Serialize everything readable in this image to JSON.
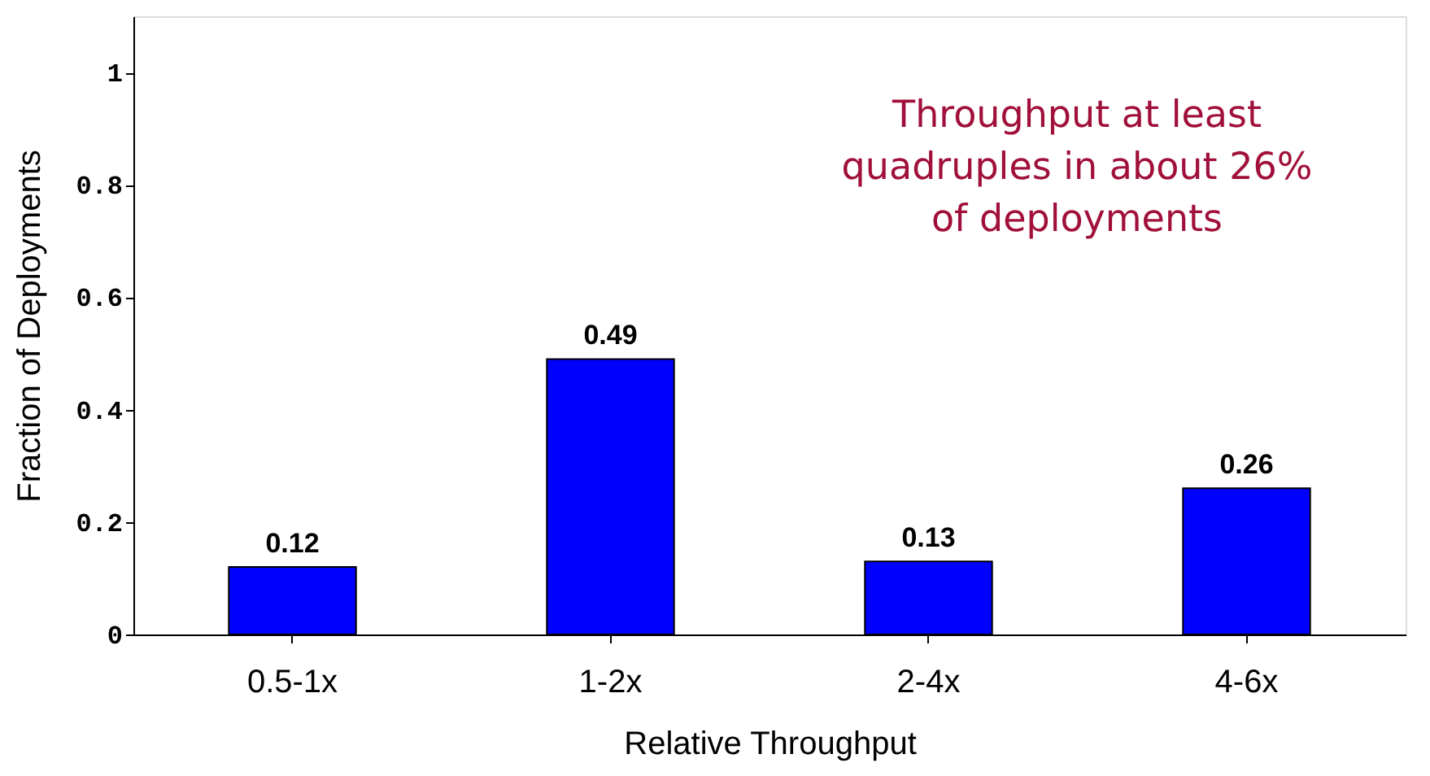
{
  "chart_data": {
    "type": "bar",
    "xlabel": "Relative Throughput",
    "ylabel": "Fraction of Deployments",
    "categories": [
      "0.5-1x",
      "1-2x",
      "2-4x",
      "4-6x"
    ],
    "values": [
      0.12,
      0.49,
      0.13,
      0.26
    ],
    "color": "#0000ff",
    "ylim": [
      0,
      1.1
    ],
    "yticks": [
      0,
      0.2,
      0.4,
      0.6,
      0.8,
      1
    ],
    "data_labels": true,
    "grid": false,
    "annotations": [
      "Throughput at least\nquadruples in about 26%\nof deployments"
    ]
  }
}
